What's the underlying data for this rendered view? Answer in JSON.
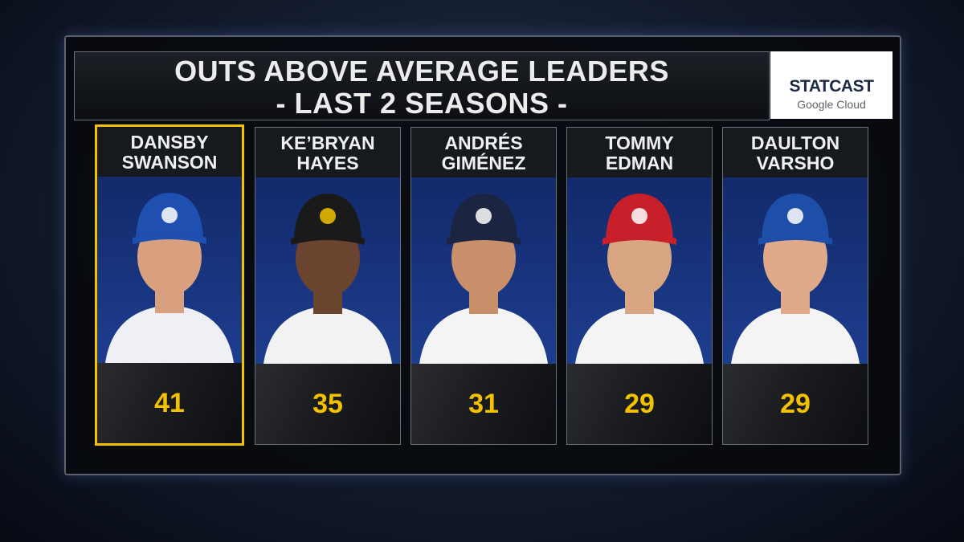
{
  "header": {
    "title": [
      "OUTS ABOVE AVERAGE LEADERS",
      "- LAST 2 SEASONS -"
    ],
    "logo": {
      "brand": "STATCAST",
      "sponsor": "Google Cloud"
    }
  },
  "players": [
    {
      "name": [
        "DANSBY",
        "SWANSON"
      ],
      "value": 41
    },
    {
      "name": [
        "KE’BRYAN",
        "HAYES"
      ],
      "value": 35
    },
    {
      "name": [
        "ANDRÉS",
        "GIMÉNEZ"
      ],
      "value": 31
    },
    {
      "name": [
        "TOMMY",
        "EDMAN"
      ],
      "value": 29
    },
    {
      "name": [
        "DAULTON",
        "VARSHO"
      ],
      "value": 29
    }
  ]
}
